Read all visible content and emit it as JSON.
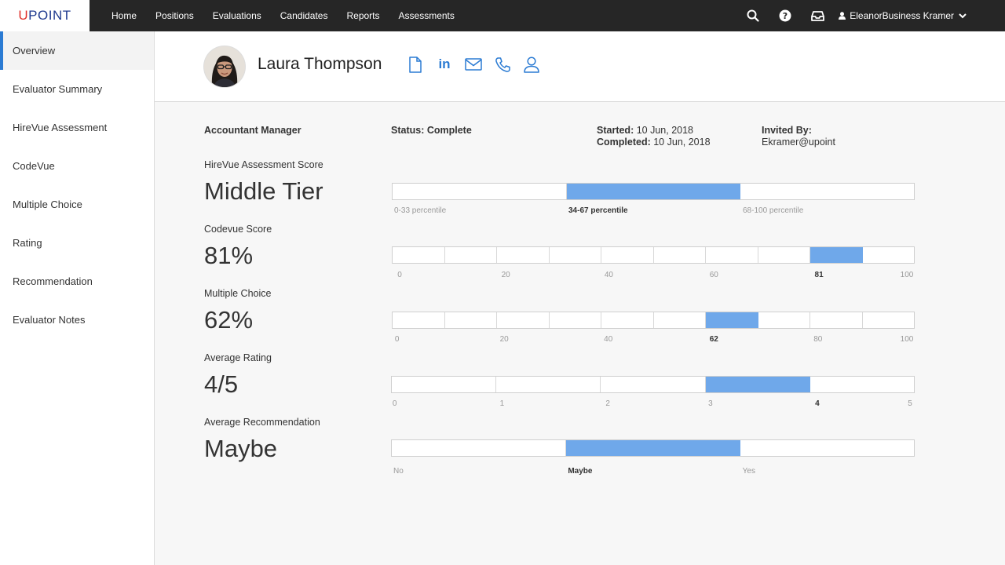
{
  "app": {
    "logo_u": "U",
    "logo_rest": "POINT"
  },
  "nav": {
    "items": [
      "Home",
      "Positions",
      "Evaluations",
      "Candidates",
      "Reports",
      "Assessments"
    ]
  },
  "user": {
    "name": "EleanorBusiness Kramer"
  },
  "icons": {
    "search": "search-icon",
    "help": "help-icon",
    "inbox": "inbox-icon",
    "user": "user-icon",
    "chevron": "chevron-down-icon"
  },
  "sidebar": {
    "items": [
      {
        "label": "Overview",
        "active": true
      },
      {
        "label": "Evaluator Summary"
      },
      {
        "label": "HireVue Assessment"
      },
      {
        "label": "CodeVue"
      },
      {
        "label": "Multiple Choice"
      },
      {
        "label": "Rating"
      },
      {
        "label": "Recommendation"
      },
      {
        "label": "Evaluator Notes"
      }
    ]
  },
  "candidate": {
    "name": "Laura Thompson",
    "contact_icons": [
      "document-icon",
      "linkedin-icon",
      "email-icon",
      "phone-icon",
      "profile-icon"
    ],
    "linkedin_text": "in"
  },
  "info": {
    "position": "Accountant Manager",
    "status_label": "Status: Complete",
    "started_label": "Started:",
    "started_value": "10 Jun, 2018",
    "completed_label": "Completed:",
    "completed_value": "10 Jun, 2018",
    "invited_label": "Invited By:",
    "invited_value": "Ekramer@upoint"
  },
  "colors": {
    "accent": "#2b7bd3",
    "bar_fill": "#6fa8ea",
    "logo_red": "#e0312b",
    "logo_blue": "#1f3a8f",
    "topbar": "#262626"
  },
  "scores": [
    {
      "label": "HireVue Assessment Score",
      "value": "Middle Tier",
      "segments": 3,
      "filled": [
        1
      ],
      "ticks": [
        "0-33 percentile",
        "34-67 percentile",
        "68-100 percentile"
      ],
      "active_tick": 1
    },
    {
      "label": "Codevue Score",
      "value": "81%",
      "segments": 10,
      "filled": [
        8
      ],
      "ticks": [
        "0",
        "20",
        "40",
        "60",
        "81",
        "100"
      ],
      "active_tick": 4
    },
    {
      "label": "Multiple Choice",
      "value": "62%",
      "segments": 10,
      "filled": [
        6
      ],
      "ticks": [
        "0",
        "20",
        "40",
        "62",
        "80",
        "100"
      ],
      "active_tick": 3
    },
    {
      "label": "Average Rating",
      "value": "4/5",
      "segments": 5,
      "filled": [
        3
      ],
      "ticks": [
        "0",
        "1",
        "2",
        "3",
        "4",
        "5"
      ],
      "active_tick": 4
    },
    {
      "label": "Average Recommendation",
      "value": "Maybe",
      "segments": 3,
      "filled": [
        1
      ],
      "ticks": [
        "No",
        "Maybe",
        "Yes"
      ],
      "active_tick": 1
    }
  ]
}
